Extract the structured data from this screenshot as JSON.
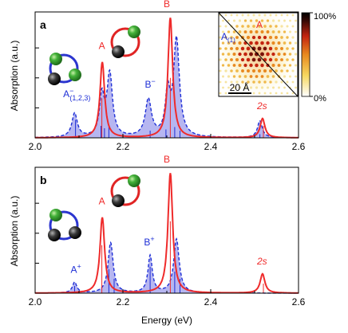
{
  "chart_data": [
    {
      "panel": "a",
      "type": "line",
      "xlabel": "",
      "ylabel": "Absorption (a.u.)",
      "xlim": [
        2.0,
        2.6
      ],
      "ylim": [
        0,
        1.05
      ],
      "xticks": [
        "2.0",
        "2.2",
        "2.4",
        "2.6"
      ],
      "series": [
        {
          "style": "red-solid",
          "color": "#ef2b2b",
          "peaks": [
            {
              "center": 2.153,
              "height": 0.63,
              "width": 0.0065
            },
            {
              "center": 2.308,
              "height": 1.0,
              "width": 0.0065
            },
            {
              "center": 2.518,
              "height": 0.16,
              "width": 0.0065
            }
          ]
        },
        {
          "style": "blue-dashed-filled",
          "color": "#1e2fd6",
          "fill": "#a9a9ee",
          "peaks": [
            {
              "center": 2.09,
              "height": 0.2,
              "width": 0.0075
            },
            {
              "center": 2.152,
              "height": 0.33,
              "width": 0.0065
            },
            {
              "center": 2.17,
              "height": 0.52,
              "width": 0.0075
            },
            {
              "center": 2.258,
              "height": 0.31,
              "width": 0.0085
            },
            {
              "center": 2.302,
              "height": 0.35,
              "width": 0.0065
            },
            {
              "center": 2.322,
              "height": 0.81,
              "width": 0.008
            },
            {
              "center": 2.512,
              "height": 0.14,
              "width": 0.0065
            }
          ]
        }
      ],
      "sticks_blue": [
        [
          2.092,
          0.15
        ],
        [
          2.15,
          0.1
        ],
        [
          2.158,
          0.08
        ],
        [
          2.168,
          0.09
        ],
        [
          2.262,
          0.06
        ],
        [
          2.298,
          0.07
        ],
        [
          2.318,
          0.09
        ],
        [
          2.33,
          0.06
        ],
        [
          2.512,
          0.03
        ]
      ],
      "sticks_red": [
        [
          2.152,
          0.33
        ],
        [
          2.308,
          0.5
        ],
        [
          2.52,
          0.1
        ]
      ],
      "annotations": [
        {
          "text": "A",
          "sub": "",
          "sup": "",
          "color": "#ef2b2b",
          "x": 2.152,
          "y": 0.74
        },
        {
          "text": "B",
          "sub": "",
          "sup": "",
          "color": "#ef2b2b",
          "x": 2.3,
          "y": 1.09
        },
        {
          "text": "A",
          "sub": "(1,2,3)",
          "sup": "−",
          "color": "#1e2fd6",
          "x": 2.095,
          "y": 0.34
        },
        {
          "text": "B",
          "sub": "",
          "sup": "−",
          "color": "#1e2fd6",
          "x": 2.262,
          "y": 0.42
        },
        {
          "text": "2s",
          "sub": "",
          "sup": "",
          "color": "#ef2b2b",
          "x": 2.517,
          "y": 0.24,
          "italic": true
        }
      ]
    },
    {
      "panel": "b",
      "type": "line",
      "xlabel": "Energy (eV)",
      "ylabel": "Absorption (a.u.)",
      "xlim": [
        2.0,
        2.6
      ],
      "ylim": [
        0,
        1.05
      ],
      "xticks": [
        "2.0",
        "2.2",
        "2.4",
        "2.6"
      ],
      "series": [
        {
          "style": "red-solid",
          "color": "#ef2b2b",
          "peaks": [
            {
              "center": 2.153,
              "height": 0.63,
              "width": 0.0065
            },
            {
              "center": 2.308,
              "height": 1.0,
              "width": 0.0065
            },
            {
              "center": 2.518,
              "height": 0.16,
              "width": 0.0065
            }
          ]
        },
        {
          "style": "blue-dashed-filled",
          "color": "#1e2fd6",
          "fill": "#a9a9ee",
          "peaks": [
            {
              "center": 2.09,
              "height": 0.09,
              "width": 0.006
            },
            {
              "center": 2.172,
              "height": 0.42,
              "width": 0.007
            },
            {
              "center": 2.262,
              "height": 0.31,
              "width": 0.006
            },
            {
              "center": 2.322,
              "height": 0.45,
              "width": 0.0075
            }
          ]
        }
      ],
      "sticks_blue": [
        [
          2.09,
          0.06
        ],
        [
          2.168,
          0.2
        ],
        [
          2.18,
          0.12
        ],
        [
          2.262,
          0.22
        ],
        [
          2.318,
          0.18
        ],
        [
          2.33,
          0.12
        ]
      ],
      "sticks_red": [
        [
          2.152,
          0.4
        ],
        [
          2.308,
          0.6
        ],
        [
          2.52,
          0.08
        ]
      ],
      "annotations": [
        {
          "text": "A",
          "sub": "",
          "sup": "",
          "color": "#ef2b2b",
          "x": 2.152,
          "y": 0.74
        },
        {
          "text": "B",
          "sub": "",
          "sup": "",
          "color": "#ef2b2b",
          "x": 2.3,
          "y": 1.09
        },
        {
          "text": "A",
          "sub": "",
          "sup": "+",
          "color": "#1e2fd6",
          "x": 2.093,
          "y": 0.17
        },
        {
          "text": "B",
          "sub": "",
          "sup": "+",
          "color": "#1e2fd6",
          "x": 2.26,
          "y": 0.4
        },
        {
          "text": "2s",
          "sub": "",
          "sup": "",
          "color": "#ef2b2b",
          "x": 2.517,
          "y": 0.24,
          "italic": true
        }
      ]
    }
  ],
  "inset": {
    "labels": [
      {
        "text": "A",
        "sub": "",
        "color": "#ef2b2b"
      },
      {
        "text": "A",
        "sub": "(1)",
        "color": "#1e2fd6"
      }
    ],
    "scale_bar_label": "20 Å",
    "colorbar": {
      "max_label": "100%",
      "min_label": "0%",
      "colors": [
        "#ffffff",
        "#f6d860",
        "#e8891f",
        "#c3240f",
        "#3a0a05",
        "#000000"
      ]
    }
  },
  "molecule_colors": {
    "ring_a": "#2b35cf",
    "ring_b": "#e02424",
    "sphere_green": "#33aa2e",
    "sphere_dark": "#2a2a2a"
  }
}
